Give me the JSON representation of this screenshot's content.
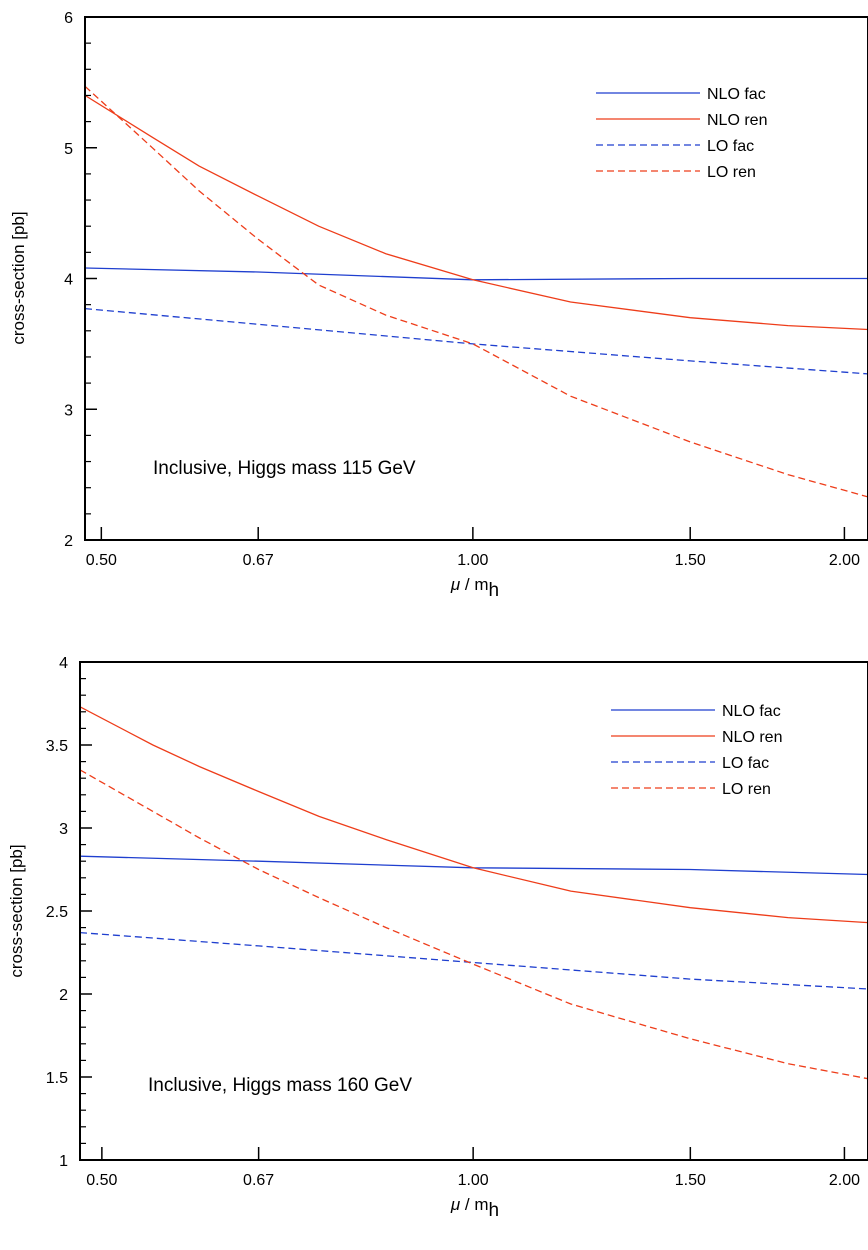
{
  "chart_data": [
    {
      "type": "line",
      "annotation": "Inclusive, Higgs mass 115 GeV",
      "xlabel": {
        "symbol": "μ",
        "sep": " / ",
        "base": "m",
        "sub": "h"
      },
      "ylabel": "cross-section [pb]",
      "x_scale": "log",
      "xlim": [
        0.485,
        2.09
      ],
      "ylim": [
        2,
        6
      ],
      "x_ticks": [
        0.5,
        0.67,
        1.0,
        1.5,
        2.0
      ],
      "x_tick_labels": [
        "0.50",
        "0.67",
        "1.00",
        "1.50",
        "2.00"
      ],
      "y_ticks": [
        2,
        3,
        4,
        5,
        6
      ],
      "y_tick_labels": [
        "2",
        "3",
        "4",
        "5",
        "6"
      ],
      "y_minor_step": 0.2,
      "legend_position": "top-right",
      "series": [
        {
          "name": "NLO fac",
          "color": "#1f3fcf",
          "dash": "solid",
          "x": [
            0.485,
            0.67,
            1.0,
            1.5,
            2.09
          ],
          "y": [
            4.08,
            4.05,
            3.99,
            4.0,
            4.0
          ]
        },
        {
          "name": "NLO ren",
          "color": "#ee3d1a",
          "dash": "solid",
          "x": [
            0.485,
            0.55,
            0.6,
            0.67,
            0.75,
            0.85,
            1.0,
            1.2,
            1.5,
            1.8,
            2.09
          ],
          "y": [
            5.4,
            5.08,
            4.86,
            4.63,
            4.4,
            4.19,
            3.99,
            3.82,
            3.7,
            3.64,
            3.61
          ]
        },
        {
          "name": "LO fac",
          "color": "#1f3fcf",
          "dash": "dashed",
          "x": [
            0.485,
            0.67,
            1.0,
            1.5,
            2.09
          ],
          "y": [
            3.77,
            3.65,
            3.5,
            3.37,
            3.27
          ]
        },
        {
          "name": "LO ren",
          "color": "#ee3d1a",
          "dash": "dashed",
          "x": [
            0.485,
            0.55,
            0.6,
            0.67,
            0.75,
            0.85,
            1.0,
            1.2,
            1.5,
            1.8,
            2.09
          ],
          "y": [
            5.47,
            5.0,
            4.67,
            4.3,
            3.95,
            3.72,
            3.5,
            3.1,
            2.75,
            2.5,
            2.33
          ]
        }
      ]
    },
    {
      "type": "line",
      "annotation": "Inclusive, Higgs mass 160 GeV",
      "xlabel": {
        "symbol": "μ",
        "sep": " / ",
        "base": "m",
        "sub": "h"
      },
      "ylabel": "cross-section [pb]",
      "x_scale": "log",
      "xlim": [
        0.48,
        2.09
      ],
      "ylim": [
        1,
        4
      ],
      "x_ticks": [
        0.5,
        0.67,
        1.0,
        1.5,
        2.0
      ],
      "x_tick_labels": [
        "0.50",
        "0.67",
        "1.00",
        "1.50",
        "2.00"
      ],
      "y_ticks": [
        1,
        1.5,
        2,
        2.5,
        3,
        3.5,
        4
      ],
      "y_tick_labels": [
        "1",
        "1.5",
        "2",
        "2.5",
        "3",
        "3.5",
        "4"
      ],
      "y_minor_step": 0.1,
      "legend_position": "top-right",
      "series": [
        {
          "name": "NLO fac",
          "color": "#1f3fcf",
          "dash": "solid",
          "x": [
            0.48,
            0.67,
            1.0,
            1.5,
            2.09
          ],
          "y": [
            2.83,
            2.8,
            2.76,
            2.75,
            2.72
          ]
        },
        {
          "name": "NLO ren",
          "color": "#ee3d1a",
          "dash": "solid",
          "x": [
            0.48,
            0.55,
            0.6,
            0.67,
            0.75,
            0.85,
            1.0,
            1.2,
            1.5,
            1.8,
            2.09
          ],
          "y": [
            3.73,
            3.5,
            3.37,
            3.22,
            3.07,
            2.93,
            2.76,
            2.62,
            2.52,
            2.46,
            2.43
          ]
        },
        {
          "name": "LO fac",
          "color": "#1f3fcf",
          "dash": "dashed",
          "x": [
            0.48,
            0.67,
            1.0,
            1.5,
            2.09
          ],
          "y": [
            2.37,
            2.29,
            2.19,
            2.09,
            2.03
          ]
        },
        {
          "name": "LO ren",
          "color": "#ee3d1a",
          "dash": "dashed",
          "x": [
            0.48,
            0.55,
            0.6,
            0.67,
            0.75,
            0.85,
            1.0,
            1.2,
            1.5,
            1.8,
            2.09
          ],
          "y": [
            3.35,
            3.1,
            2.94,
            2.75,
            2.58,
            2.4,
            2.18,
            1.94,
            1.73,
            1.58,
            1.49
          ]
        }
      ]
    }
  ]
}
